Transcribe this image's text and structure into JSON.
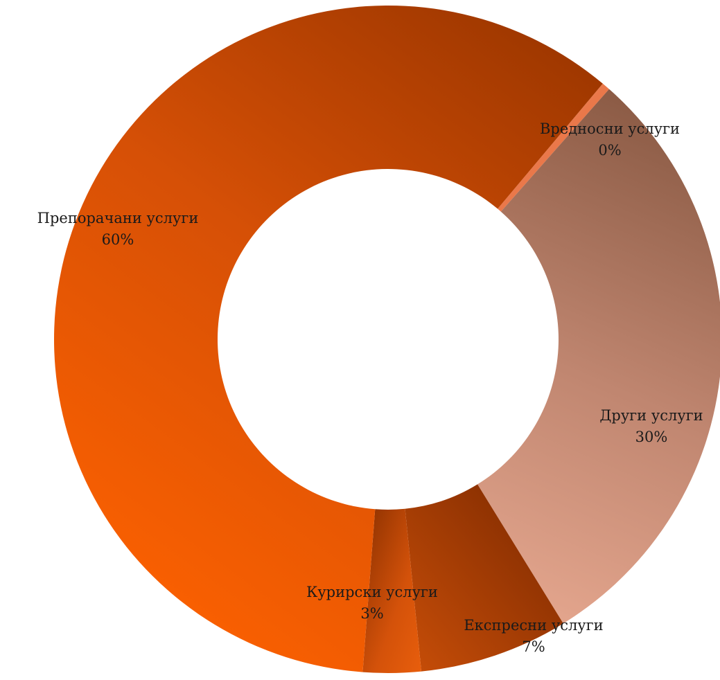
{
  "chart_data": {
    "type": "pie",
    "variant": "donut",
    "title": "",
    "categories": [
      "Вредносни услуги",
      "Други услуги",
      "Експресни услуги",
      "Курирски услуги",
      "Препорачани услуги"
    ],
    "values": [
      0.4,
      29.7,
      7.2,
      2.8,
      59.9
    ],
    "percent_labels": [
      "0%",
      "30%",
      "7%",
      "3%",
      "60%"
    ],
    "colors": [
      "#f07a4a",
      "#c08670",
      "#a03a08",
      "#c04a0a",
      "#e85a08"
    ],
    "legend": "none",
    "data_labels": "category-and-percent"
  }
}
